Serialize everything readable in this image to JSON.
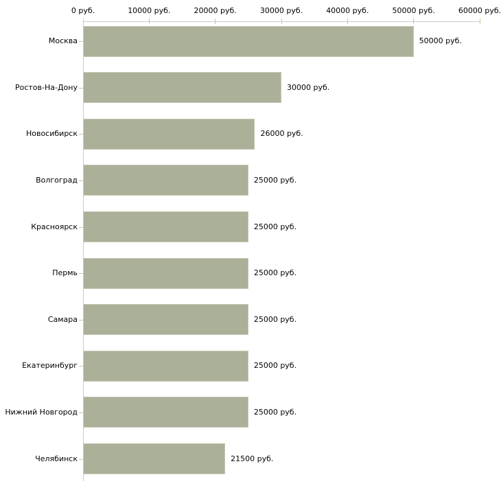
{
  "chart_data": {
    "type": "bar",
    "orientation": "horizontal",
    "title": "",
    "categories": [
      "Москва",
      "Ростов-На-Дону",
      "Новосибирск",
      "Волгоград",
      "Красноярск",
      "Пермь",
      "Самара",
      "Екатеринбург",
      "Нижний Новгород",
      "Челябинск"
    ],
    "values": [
      50000,
      30000,
      26000,
      25000,
      25000,
      25000,
      25000,
      25000,
      25000,
      21500
    ],
    "value_labels": [
      "50000 руб.",
      "30000 руб.",
      "26000 руб.",
      "25000 руб.",
      "25000 руб.",
      "25000 руб.",
      "25000 руб.",
      "25000 руб.",
      "25000 руб.",
      "21500 руб."
    ],
    "x_axis": {
      "position": "top",
      "min": 0,
      "max": 60000,
      "tick_values": [
        0,
        10000,
        20000,
        30000,
        40000,
        50000,
        60000
      ],
      "tick_labels": [
        "0 руб.",
        "10000 руб.",
        "20000 руб.",
        "30000 руб.",
        "40000 руб.",
        "50000 руб.",
        "60000 руб."
      ]
    },
    "grid": false,
    "legend": false,
    "colors": {
      "bar_fill": "#abb199",
      "bar_border": "#c3c7b2",
      "axis_line": "#c9c9c9",
      "tick_mark": "#c5c5a0",
      "text": "#000000",
      "background": "#ffffff"
    }
  }
}
